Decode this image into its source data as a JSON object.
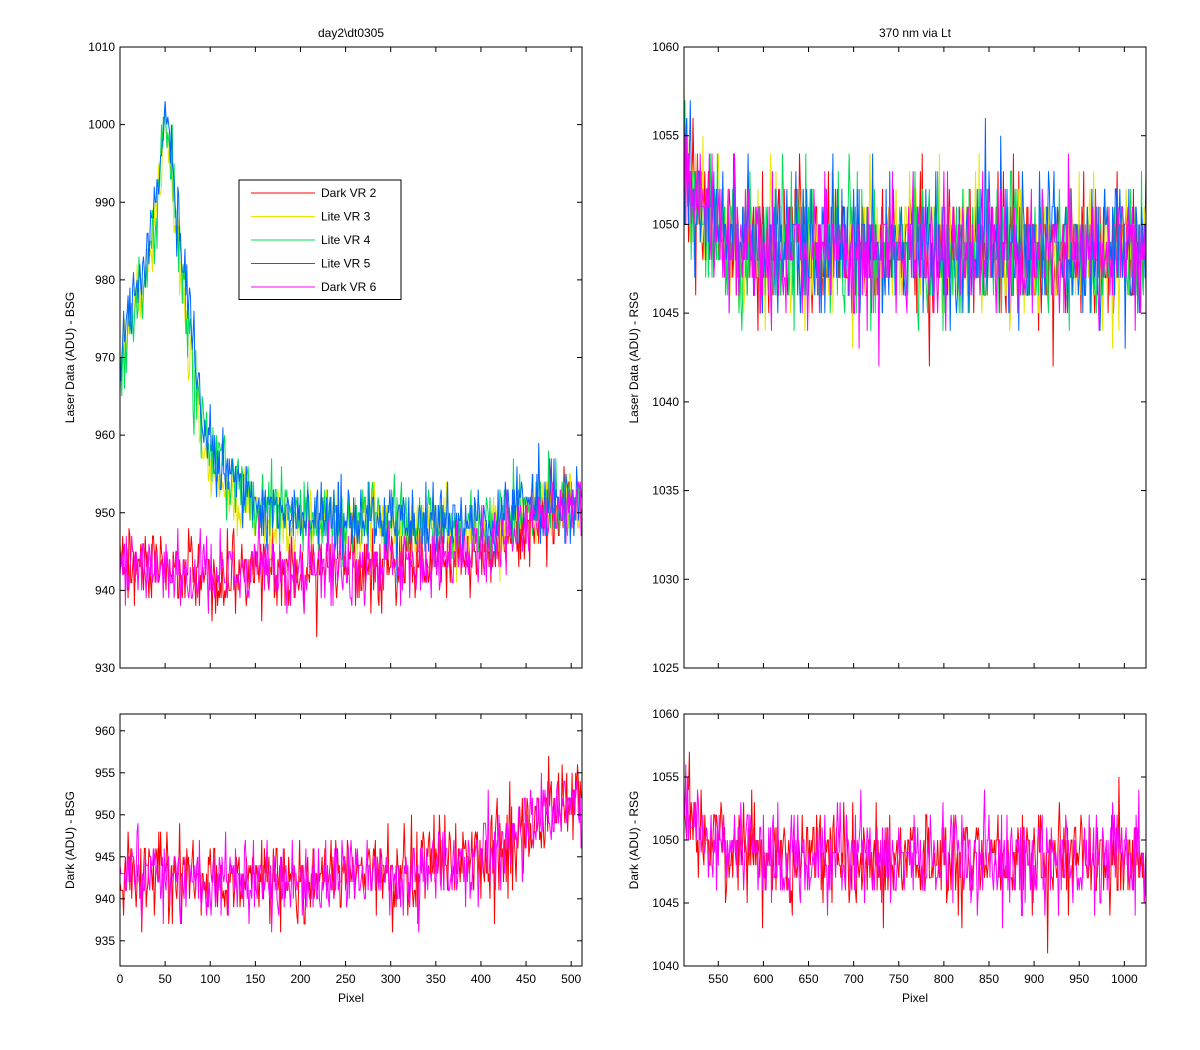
{
  "figure_title": "",
  "chart_data": [
    {
      "id": "top-left",
      "type": "line",
      "title": "day2\\dt0305",
      "xlabel": "",
      "ylabel": "Laser Data (ADU) - BSG",
      "xlim": [
        0,
        512
      ],
      "ylim": [
        930,
        1010
      ],
      "xticks": [
        0,
        50,
        100,
        150,
        200,
        250,
        300,
        350,
        400,
        450,
        500
      ],
      "yticks": [
        930,
        940,
        950,
        960,
        970,
        980,
        990,
        1000,
        1010
      ],
      "show_xtick_labels": false,
      "legend": {
        "position": "upper-middle",
        "entries": [
          "Dark VR 2",
          "Lite VR 3",
          "Lite VR 4",
          "Lite VR 5",
          "Dark VR 6"
        ]
      },
      "series": [
        {
          "name": "Dark VR 2",
          "color": "#ff0000",
          "x_range": [
            0,
            511
          ],
          "anchors": [
            [
              0,
              944
            ],
            [
              25,
              943
            ],
            [
              50,
              943
            ],
            [
              75,
              943
            ],
            [
              100,
              942
            ],
            [
              150,
              943
            ],
            [
              200,
              942
            ],
            [
              250,
              943
            ],
            [
              300,
              943
            ],
            [
              350,
              944
            ],
            [
              400,
              945
            ],
            [
              450,
              948
            ],
            [
              480,
              950
            ],
            [
              511,
              952
            ]
          ],
          "noise": 2.5
        },
        {
          "name": "Lite VR 3",
          "color": "#e6e600",
          "x_range": [
            0,
            511
          ],
          "anchors": [
            [
              0,
              968
            ],
            [
              10,
              974
            ],
            [
              20,
              978
            ],
            [
              30,
              982
            ],
            [
              40,
              988
            ],
            [
              50,
              1000
            ],
            [
              55,
              996
            ],
            [
              60,
              990
            ],
            [
              70,
              978
            ],
            [
              80,
              968
            ],
            [
              90,
              960
            ],
            [
              100,
              956
            ],
            [
              120,
              952
            ],
            [
              150,
              950
            ],
            [
              200,
              948
            ],
            [
              250,
              949
            ],
            [
              300,
              949
            ],
            [
              350,
              948
            ],
            [
              400,
              948
            ],
            [
              450,
              950
            ],
            [
              511,
              951
            ]
          ],
          "noise": 2.3
        },
        {
          "name": "Lite VR 4",
          "color": "#00dd55",
          "x_range": [
            0,
            511
          ],
          "anchors": [
            [
              0,
              966
            ],
            [
              10,
              974
            ],
            [
              20,
              978
            ],
            [
              30,
              982
            ],
            [
              40,
              988
            ],
            [
              50,
              1000
            ],
            [
              55,
              996
            ],
            [
              60,
              991
            ],
            [
              70,
              980
            ],
            [
              80,
              970
            ],
            [
              90,
              962
            ],
            [
              100,
              958
            ],
            [
              120,
              954
            ],
            [
              150,
              951
            ],
            [
              200,
              949
            ],
            [
              250,
              949
            ],
            [
              300,
              949
            ],
            [
              350,
              949
            ],
            [
              400,
              948
            ],
            [
              450,
              950
            ],
            [
              511,
              952
            ]
          ],
          "noise": 2.5
        },
        {
          "name": "Lite VR 5",
          "color": "#0066ff",
          "x_range": [
            0,
            511
          ],
          "anchors": [
            [
              0,
              968
            ],
            [
              10,
              976
            ],
            [
              20,
              980
            ],
            [
              30,
              984
            ],
            [
              40,
              990
            ],
            [
              50,
              1002
            ],
            [
              55,
              998
            ],
            [
              60,
              993
            ],
            [
              70,
              982
            ],
            [
              80,
              972
            ],
            [
              90,
              964
            ],
            [
              100,
              959
            ],
            [
              120,
              955
            ],
            [
              150,
              951
            ],
            [
              200,
              949
            ],
            [
              250,
              949
            ],
            [
              300,
              949
            ],
            [
              350,
              949
            ],
            [
              400,
              948
            ],
            [
              450,
              951
            ],
            [
              511,
              952
            ]
          ],
          "noise": 2.5
        },
        {
          "name": "Dark VR 6",
          "color": "#ff00ff",
          "x_range": [
            0,
            511
          ],
          "anchors": [
            [
              0,
              944
            ],
            [
              25,
              943
            ],
            [
              50,
              943
            ],
            [
              75,
              943
            ],
            [
              100,
              942
            ],
            [
              150,
              943
            ],
            [
              200,
              942
            ],
            [
              250,
              943
            ],
            [
              300,
              943
            ],
            [
              350,
              944
            ],
            [
              400,
              945
            ],
            [
              450,
              948
            ],
            [
              480,
              950
            ],
            [
              511,
              952
            ]
          ],
          "noise": 2.3
        }
      ]
    },
    {
      "id": "top-right",
      "type": "line",
      "title": "370 nm via Lt",
      "xlabel": "",
      "ylabel": "Laser Data (ADU) - RSG",
      "xlim": [
        512,
        1024
      ],
      "ylim": [
        1025,
        1060
      ],
      "xticks": [
        550,
        600,
        650,
        700,
        750,
        800,
        850,
        900,
        950,
        1000
      ],
      "yticks": [
        1025,
        1030,
        1035,
        1040,
        1045,
        1050,
        1055,
        1060
      ],
      "show_xtick_labels": false,
      "series": [
        {
          "name": "Dark VR 2",
          "color": "#ff0000",
          "x_range": [
            512,
            1024
          ],
          "anchors": [
            [
              512,
              1053
            ],
            [
              530,
              1051
            ],
            [
              560,
              1049
            ],
            [
              600,
              1048.5
            ],
            [
              700,
              1048.5
            ],
            [
              800,
              1048.5
            ],
            [
              900,
              1048.5
            ],
            [
              1024,
              1048.5
            ]
          ],
          "noise": 1.9
        },
        {
          "name": "Lite VR 3",
          "color": "#e6e600",
          "x_range": [
            512,
            1024
          ],
          "anchors": [
            [
              512,
              1053
            ],
            [
              530,
              1051
            ],
            [
              560,
              1049
            ],
            [
              600,
              1048.5
            ],
            [
              700,
              1048.5
            ],
            [
              800,
              1048.5
            ],
            [
              900,
              1048.5
            ],
            [
              1024,
              1048.5
            ]
          ],
          "noise": 1.9
        },
        {
          "name": "Lite VR 4",
          "color": "#00dd55",
          "x_range": [
            512,
            1024
          ],
          "anchors": [
            [
              512,
              1053
            ],
            [
              530,
              1051
            ],
            [
              560,
              1049
            ],
            [
              600,
              1048.5
            ],
            [
              700,
              1048.5
            ],
            [
              800,
              1048.5
            ],
            [
              900,
              1048.5
            ],
            [
              1024,
              1048.5
            ]
          ],
          "noise": 1.9
        },
        {
          "name": "Lite VR 5",
          "color": "#0066ff",
          "x_range": [
            512,
            1024
          ],
          "anchors": [
            [
              512,
              1053
            ],
            [
              530,
              1051
            ],
            [
              560,
              1049
            ],
            [
              600,
              1048.5
            ],
            [
              700,
              1048.5
            ],
            [
              800,
              1048.5
            ],
            [
              900,
              1048.5
            ],
            [
              1024,
              1048.5
            ]
          ],
          "noise": 1.9
        },
        {
          "name": "Dark VR 6",
          "color": "#ff00ff",
          "x_range": [
            512,
            1024
          ],
          "anchors": [
            [
              512,
              1053
            ],
            [
              530,
              1051
            ],
            [
              560,
              1049
            ],
            [
              600,
              1048.5
            ],
            [
              700,
              1048.5
            ],
            [
              800,
              1048.5
            ],
            [
              900,
              1048.5
            ],
            [
              1024,
              1048.5
            ]
          ],
          "noise": 1.9
        }
      ]
    },
    {
      "id": "bottom-left",
      "type": "line",
      "title": "",
      "xlabel": "Pixel",
      "ylabel": "Dark (ADU) - BSG",
      "xlim": [
        0,
        512
      ],
      "ylim": [
        932,
        962
      ],
      "xticks": [
        0,
        50,
        100,
        150,
        200,
        250,
        300,
        350,
        400,
        450,
        500
      ],
      "yticks": [
        935,
        940,
        945,
        950,
        955,
        960
      ],
      "show_xtick_labels": true,
      "series": [
        {
          "name": "Dark VR 2",
          "color": "#ff0000",
          "x_range": [
            0,
            511
          ],
          "anchors": [
            [
              0,
              944
            ],
            [
              25,
              943
            ],
            [
              50,
              943
            ],
            [
              75,
              943
            ],
            [
              100,
              942
            ],
            [
              150,
              943
            ],
            [
              200,
              942
            ],
            [
              250,
              943
            ],
            [
              300,
              943
            ],
            [
              350,
              944
            ],
            [
              400,
              945
            ],
            [
              450,
              948
            ],
            [
              480,
              950
            ],
            [
              511,
              952
            ]
          ],
          "noise": 2.5
        },
        {
          "name": "Dark VR 6",
          "color": "#ff00ff",
          "x_range": [
            0,
            511
          ],
          "anchors": [
            [
              0,
              944
            ],
            [
              25,
              943
            ],
            [
              50,
              943
            ],
            [
              75,
              943
            ],
            [
              100,
              942
            ],
            [
              150,
              943
            ],
            [
              200,
              942
            ],
            [
              250,
              943
            ],
            [
              300,
              943
            ],
            [
              350,
              944
            ],
            [
              400,
              945
            ],
            [
              450,
              948
            ],
            [
              480,
              950
            ],
            [
              511,
              952
            ]
          ],
          "noise": 2.3
        }
      ]
    },
    {
      "id": "bottom-right",
      "type": "line",
      "title": "",
      "xlabel": "Pixel",
      "ylabel": "Dark (ADU) - RSG",
      "xlim": [
        512,
        1024
      ],
      "ylim": [
        1040,
        1060
      ],
      "xticks": [
        550,
        600,
        650,
        700,
        750,
        800,
        850,
        900,
        950,
        1000
      ],
      "yticks": [
        1040,
        1045,
        1050,
        1055,
        1060
      ],
      "show_xtick_labels": true,
      "series": [
        {
          "name": "Dark VR 2",
          "color": "#ff0000",
          "x_range": [
            512,
            1024
          ],
          "anchors": [
            [
              512,
              1053
            ],
            [
              530,
              1051
            ],
            [
              560,
              1049
            ],
            [
              600,
              1048.5
            ],
            [
              700,
              1048.5
            ],
            [
              800,
              1048.5
            ],
            [
              900,
              1048.5
            ],
            [
              1024,
              1048.5
            ]
          ],
          "noise": 1.9
        },
        {
          "name": "Dark VR 6",
          "color": "#ff00ff",
          "x_range": [
            512,
            1024
          ],
          "anchors": [
            [
              512,
              1053
            ],
            [
              530,
              1051
            ],
            [
              560,
              1049
            ],
            [
              600,
              1048.5
            ],
            [
              700,
              1048.5
            ],
            [
              800,
              1048.5
            ],
            [
              900,
              1048.5
            ],
            [
              1024,
              1048.5
            ]
          ],
          "noise": 1.9
        }
      ]
    }
  ]
}
